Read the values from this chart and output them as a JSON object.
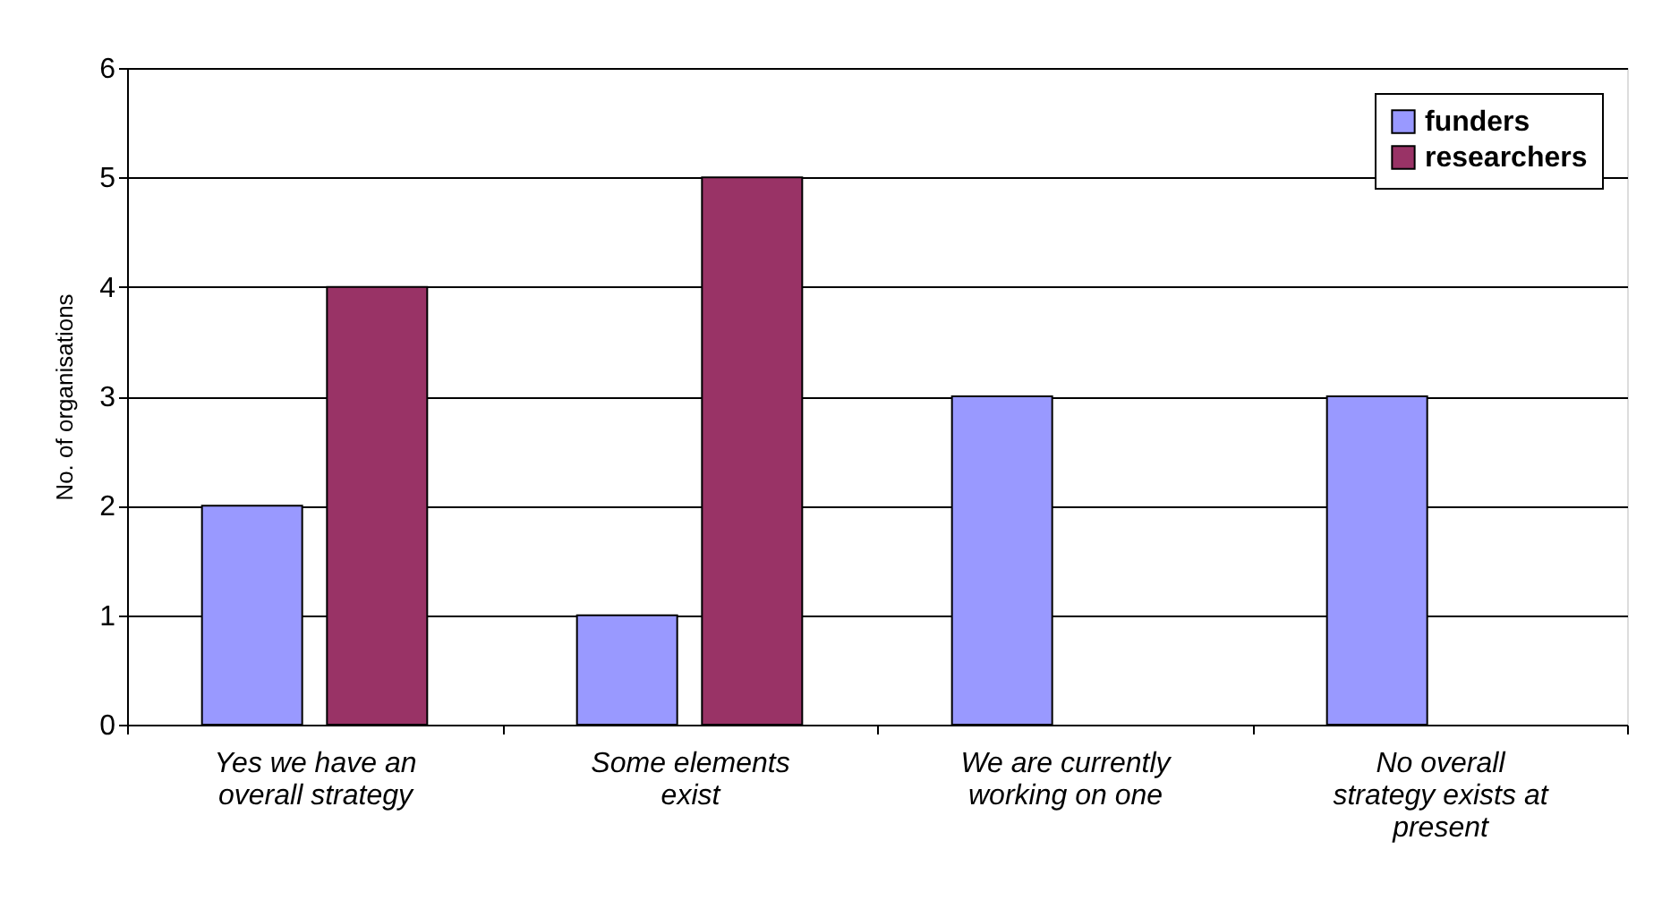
{
  "chart_data": {
    "type": "bar",
    "ylabel": "No. of organisations",
    "categories": [
      "Yes we have an overall strategy",
      "Some elements exist",
      "We are currently working on one",
      "No overall strategy exists at present"
    ],
    "series": [
      {
        "name": "funders",
        "color": "#9999ff",
        "values": [
          2,
          1,
          3,
          3
        ]
      },
      {
        "name": "researchers",
        "color": "#993366",
        "values": [
          4,
          5,
          0,
          0
        ]
      }
    ],
    "ylim": [
      0,
      6
    ],
    "yticks": [
      0,
      1,
      2,
      3,
      4,
      5,
      6
    ],
    "grid": "y",
    "legend": "top right"
  }
}
